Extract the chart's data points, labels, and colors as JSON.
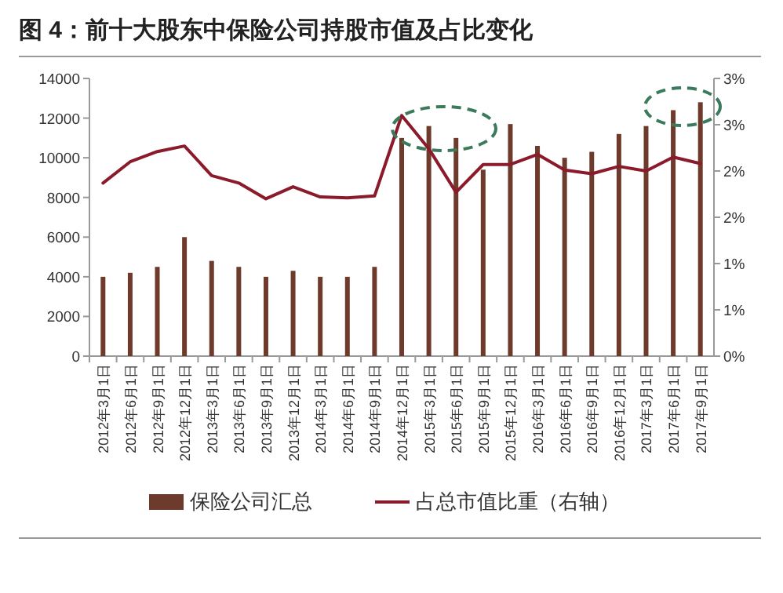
{
  "chart_data": {
    "type": "bar",
    "title": "图 4：前十大股东中保险公司持股市值及占比变化",
    "categories": [
      "2012年3月1日",
      "2012年6月1日",
      "2012年9月1日",
      "2012年12月1日",
      "2013年3月1日",
      "2013年6月1日",
      "2013年9月1日",
      "2013年12月1日",
      "2014年3月1日",
      "2014年6月1日",
      "2014年9月1日",
      "2014年12月1日",
      "2015年3月1日",
      "2015年6月1日",
      "2015年9月1日",
      "2015年12月1日",
      "2016年3月1日",
      "2016年6月1日",
      "2016年9月1日",
      "2016年12月1日",
      "2017年3月1日",
      "2017年6月1日",
      "2017年9月1日"
    ],
    "series": [
      {
        "name": "保险公司汇总",
        "color": "#6e3a2c",
        "values": [
          4000,
          4200,
          4500,
          6000,
          4800,
          4500,
          4000,
          4300,
          4000,
          4000,
          4500,
          11000,
          11600,
          11000,
          9400,
          11700,
          10600,
          10000,
          10300,
          11200,
          11600,
          12400,
          12800
        ]
      },
      {
        "name": "占总市值比重（右轴）",
        "type": "line",
        "axis": "y2",
        "color": "#8b1a2b",
        "values": [
          1.87,
          2.1,
          2.21,
          2.27,
          1.95,
          1.87,
          1.7,
          1.83,
          1.72,
          1.71,
          1.73,
          2.6,
          2.24,
          1.77,
          2.07,
          2.07,
          2.18,
          2.01,
          1.97,
          2.05,
          2.0,
          2.15,
          2.08
        ]
      }
    ],
    "ylim": [
      0,
      14000
    ],
    "yticks": [
      0,
      2000,
      4000,
      6000,
      8000,
      10000,
      12000,
      14000
    ],
    "y2lim": [
      0,
      3
    ],
    "y2ticks": [
      {
        "value": 0,
        "label": "0%"
      },
      {
        "value": 0.5,
        "label": "1%"
      },
      {
        "value": 1,
        "label": "1%"
      },
      {
        "value": 1.5,
        "label": "2%"
      },
      {
        "value": 2,
        "label": "2%"
      },
      {
        "value": 2.5,
        "label": "3%"
      },
      {
        "value": 3,
        "label": "3%"
      }
    ],
    "legend": "bottom"
  }
}
